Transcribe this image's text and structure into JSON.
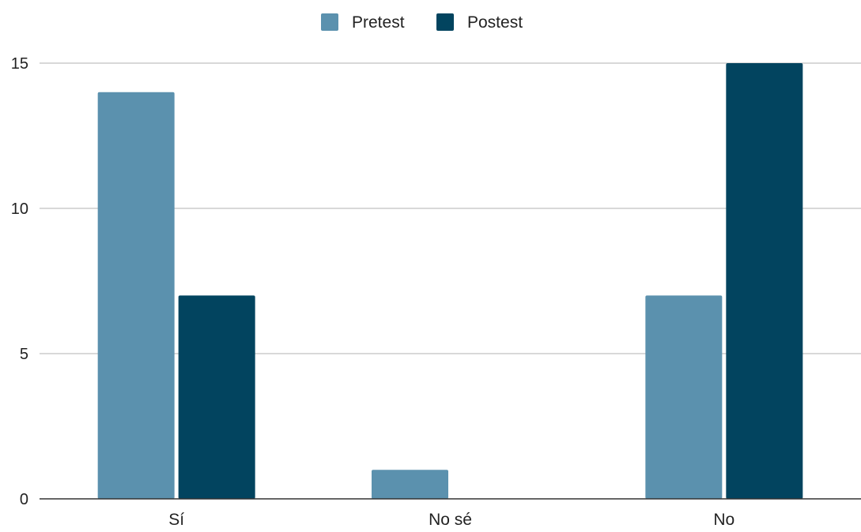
{
  "chart_data": {
    "type": "bar",
    "categories": [
      "Sí",
      "No sé",
      "No"
    ],
    "series": [
      {
        "name": "Pretest",
        "values": [
          14,
          1,
          7
        ],
        "color": "#5b91ae"
      },
      {
        "name": "Postest",
        "values": [
          7,
          0,
          15
        ],
        "color": "#02445f"
      }
    ],
    "title": "",
    "xlabel": "",
    "ylabel": "",
    "ylim": [
      0,
      15
    ],
    "yticks": [
      0,
      5,
      10,
      15
    ],
    "grid": true,
    "legend_position": "top-center"
  }
}
